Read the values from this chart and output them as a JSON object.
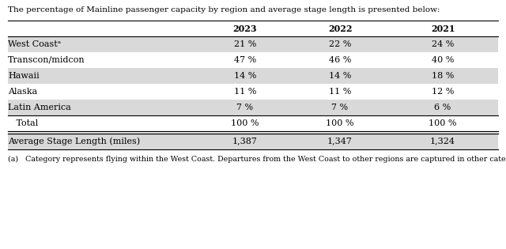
{
  "title_text": "The percentage of Mainline passenger capacity by region and average stage length is presented below:",
  "columns": [
    "2023",
    "2022",
    "2021"
  ],
  "rows": [
    {
      "label": "West Coastᵃ",
      "vals": [
        "21 %",
        "22 %",
        "24 %"
      ],
      "shaded": true
    },
    {
      "label": "Transcon/midcon",
      "vals": [
        "47 %",
        "46 %",
        "40 %"
      ],
      "shaded": false
    },
    {
      "label": "Hawaii",
      "vals": [
        "14 %",
        "14 %",
        "18 %"
      ],
      "shaded": true
    },
    {
      "label": "Alaska",
      "vals": [
        "11 %",
        "11 %",
        "12 %"
      ],
      "shaded": false
    },
    {
      "label": "Latin America",
      "vals": [
        "7 %",
        "7 %",
        "6 %"
      ],
      "shaded": true
    }
  ],
  "total_row": {
    "label": "   Total",
    "vals": [
      "100 %",
      "100 %",
      "100 %"
    ],
    "shaded": false
  },
  "avg_row": {
    "label": "Average Stage Length (miles)",
    "vals": [
      "1,387",
      "1,347",
      "1,324"
    ],
    "shaded": true
  },
  "footnote": "(a)   Category represents flying within the West Coast. Departures from the West Coast to other regions are captured in other categories.",
  "shaded_color": "#d9d9d9",
  "bg_color": "#ffffff",
  "text_color": "#000000",
  "fig_width": 6.4,
  "fig_height": 3.15,
  "dpi": 100
}
